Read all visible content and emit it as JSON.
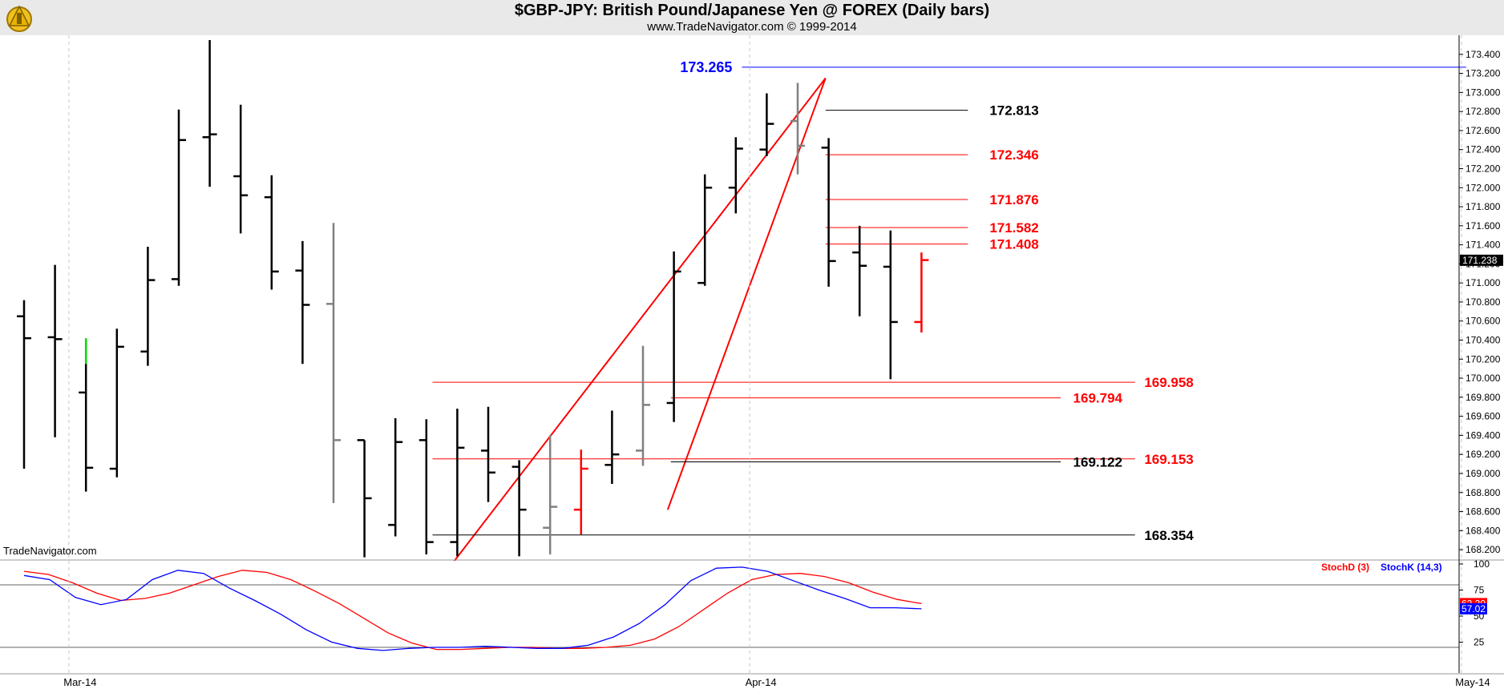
{
  "header": {
    "title": "$GBP-JPY:  British Pound/Japanese Yen @ FOREX  (Daily bars)",
    "subtitle": "www.TradeNavigator.com © 1999-2014"
  },
  "watermark": "TradeNavigator.com",
  "colors": {
    "up": "#000000",
    "down": "#ff0000",
    "neutral": "#808080",
    "green": "#00dd00",
    "stochK": "#0000ff",
    "stochD": "#ff0000",
    "highlight": "#0000ff"
  },
  "chart_data": [
    {
      "type": "ohlc",
      "ylim": [
        168.1,
        173.6
      ],
      "y_ticks": [
        "168.200",
        "168.400",
        "168.600",
        "168.800",
        "169.000",
        "169.200",
        "169.400",
        "169.600",
        "169.800",
        "170.000",
        "170.200",
        "170.400",
        "170.600",
        "170.800",
        "171.000",
        "171.200",
        "171.400",
        "171.600",
        "171.800",
        "172.000",
        "172.200",
        "172.400",
        "172.600",
        "172.800",
        "173.000",
        "173.200",
        "173.400"
      ],
      "x_labels": [
        {
          "label": "Mar-14",
          "bar": 1.5
        },
        {
          "label": "Apr-14",
          "bar": 23.5
        },
        {
          "label": "May-14",
          "bar": 46.5
        }
      ],
      "last_price": "171.238",
      "bars": [
        {
          "o": 170.65,
          "h": 170.82,
          "l": 169.05,
          "c": 170.42,
          "color": "black"
        },
        {
          "o": 170.43,
          "h": 171.19,
          "l": 169.38,
          "c": 170.41,
          "color": "black"
        },
        {
          "o": 169.85,
          "h": 170.42,
          "l": 168.81,
          "c": 169.06,
          "color": "black",
          "topcolor": "green"
        },
        {
          "o": 169.05,
          "h": 170.52,
          "l": 168.96,
          "c": 170.33,
          "color": "black"
        },
        {
          "o": 170.28,
          "h": 171.38,
          "l": 170.13,
          "c": 171.03,
          "color": "black"
        },
        {
          "o": 171.04,
          "h": 172.82,
          "l": 170.97,
          "c": 172.5,
          "color": "black"
        },
        {
          "o": 172.53,
          "h": 173.55,
          "l": 172.01,
          "c": 172.56,
          "color": "black"
        },
        {
          "o": 172.12,
          "h": 172.87,
          "l": 171.52,
          "c": 171.92,
          "color": "black"
        },
        {
          "o": 171.9,
          "h": 172.13,
          "l": 170.93,
          "c": 171.12,
          "color": "black"
        },
        {
          "o": 171.13,
          "h": 171.44,
          "l": 170.15,
          "c": 170.77,
          "color": "black"
        },
        {
          "o": 170.78,
          "h": 171.63,
          "l": 168.69,
          "c": 169.35,
          "color": "gray"
        },
        {
          "o": 169.35,
          "h": 169.35,
          "l": 168.12,
          "c": 168.74,
          "color": "black"
        },
        {
          "o": 168.46,
          "h": 169.58,
          "l": 168.34,
          "c": 169.33,
          "color": "black"
        },
        {
          "o": 169.35,
          "h": 169.57,
          "l": 168.15,
          "c": 168.28,
          "color": "black"
        },
        {
          "o": 168.28,
          "h": 169.68,
          "l": 168.13,
          "c": 169.27,
          "color": "black"
        },
        {
          "o": 169.24,
          "h": 169.7,
          "l": 168.7,
          "c": 169.01,
          "color": "black"
        },
        {
          "o": 169.07,
          "h": 169.14,
          "l": 168.13,
          "c": 168.62,
          "color": "black"
        },
        {
          "o": 168.43,
          "h": 169.4,
          "l": 168.15,
          "c": 168.65,
          "color": "gray"
        },
        {
          "o": 168.62,
          "h": 169.25,
          "l": 168.36,
          "c": 169.05,
          "color": "red"
        },
        {
          "o": 169.09,
          "h": 169.66,
          "l": 168.89,
          "c": 169.2,
          "color": "black"
        },
        {
          "o": 169.24,
          "h": 170.34,
          "l": 169.08,
          "c": 169.72,
          "color": "gray"
        },
        {
          "o": 169.74,
          "h": 171.33,
          "l": 169.54,
          "c": 171.12,
          "color": "black"
        },
        {
          "o": 171.0,
          "h": 172.14,
          "l": 170.97,
          "c": 172.0,
          "color": "black"
        },
        {
          "o": 172.0,
          "h": 172.53,
          "l": 171.73,
          "c": 172.41,
          "color": "black"
        },
        {
          "o": 172.4,
          "h": 172.99,
          "l": 172.33,
          "c": 172.67,
          "color": "black"
        },
        {
          "o": 172.7,
          "h": 173.1,
          "l": 172.14,
          "c": 172.44,
          "color": "gray"
        },
        {
          "o": 172.42,
          "h": 172.52,
          "l": 170.96,
          "c": 171.23,
          "color": "black"
        },
        {
          "o": 171.32,
          "h": 171.6,
          "l": 170.65,
          "c": 171.18,
          "color": "black"
        },
        {
          "o": 171.17,
          "h": 171.55,
          "l": 169.99,
          "c": 170.59,
          "color": "black"
        },
        {
          "o": 170.59,
          "h": 171.32,
          "l": 170.48,
          "c": 171.24,
          "color": "red"
        }
      ],
      "annotations": {
        "top_line": {
          "value": 173.265,
          "label": "173.265"
        },
        "levels": [
          {
            "value": 172.813,
            "label": "172.813",
            "color": "black"
          },
          {
            "value": 172.346,
            "label": "172.346",
            "color": "red"
          },
          {
            "value": 171.876,
            "label": "171.876",
            "color": "red"
          },
          {
            "value": 171.582,
            "label": "171.582",
            "color": "red"
          },
          {
            "value": 171.408,
            "label": "171.408",
            "color": "red"
          },
          {
            "value": 169.958,
            "label": "169.958",
            "color": "red"
          },
          {
            "value": 169.794,
            "label": "169.794",
            "color": "red"
          },
          {
            "value": 169.153,
            "label": "169.153",
            "color": "red"
          },
          {
            "value": 169.122,
            "label": "169.122",
            "color": "black"
          },
          {
            "value": 168.354,
            "label": "168.354",
            "color": "black"
          }
        ],
        "trendlines": [
          {
            "from": [
              13.9,
              168.08
            ],
            "to": [
              25.9,
              173.15
            ]
          },
          {
            "from": [
              20.8,
              168.62
            ],
            "to": [
              25.9,
              173.15
            ]
          }
        ]
      }
    },
    {
      "type": "line",
      "ylim": [
        0,
        100
      ],
      "y_ticks": [
        "25",
        "50",
        "75",
        "100"
      ],
      "levels": [
        80,
        20
      ],
      "series": [
        {
          "name": "StochD (3)",
          "color": "#ff0000",
          "value_label": "62.20",
          "values": [
            93,
            90,
            82,
            72,
            65,
            67,
            72,
            80,
            88,
            94,
            92,
            85,
            74,
            62,
            48,
            34,
            24,
            18,
            18,
            19,
            20,
            20,
            19,
            19,
            20,
            22,
            28,
            40,
            56,
            72,
            85,
            90,
            91,
            88,
            82,
            73,
            66,
            62
          ]
        },
        {
          "name": "StochK (14,3)",
          "color": "#0000ff",
          "value_label": "57.02",
          "values": [
            89,
            85,
            68,
            61,
            66,
            85,
            94,
            91,
            77,
            65,
            52,
            37,
            25,
            19,
            17,
            19,
            20,
            20,
            21,
            20,
            19,
            19,
            22,
            30,
            43,
            61,
            84,
            96,
            97,
            93,
            84,
            75,
            67,
            58,
            58,
            57
          ]
        }
      ],
      "k_offset": 0,
      "d_offset": 0
    }
  ]
}
